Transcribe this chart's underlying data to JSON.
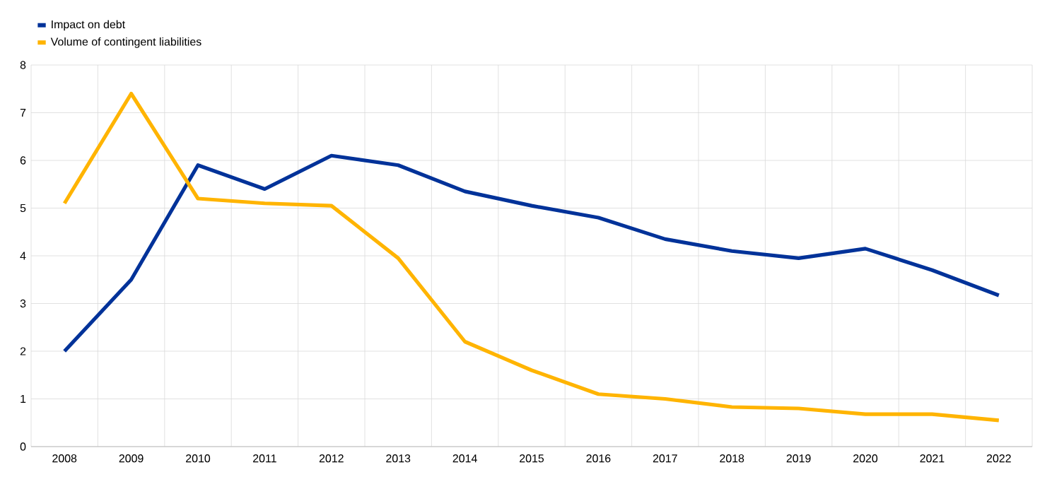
{
  "chart_data": {
    "type": "line",
    "categories": [
      "2008",
      "2009",
      "2010",
      "2011",
      "2012",
      "2013",
      "2014",
      "2015",
      "2016",
      "2017",
      "2018",
      "2019",
      "2020",
      "2021",
      "2022"
    ],
    "series": [
      {
        "name": "Impact on debt",
        "color": "#003299",
        "values": [
          2.0,
          3.5,
          5.9,
          5.4,
          6.1,
          5.9,
          5.35,
          5.05,
          4.8,
          4.35,
          4.1,
          3.95,
          4.15,
          3.7,
          3.17
        ]
      },
      {
        "name": "Volume of contingent liabilities",
        "color": "#ffb400",
        "values": [
          5.1,
          7.4,
          5.2,
          5.1,
          5.05,
          3.95,
          2.2,
          1.6,
          1.1,
          1.0,
          0.83,
          0.8,
          0.68,
          0.68,
          0.55
        ]
      }
    ],
    "ylim": [
      0,
      8
    ],
    "yticks": [
      0,
      1,
      2,
      3,
      4,
      5,
      6,
      7,
      8
    ],
    "grid": true,
    "legend": "top left",
    "marker": "none",
    "line_style": "solid"
  }
}
